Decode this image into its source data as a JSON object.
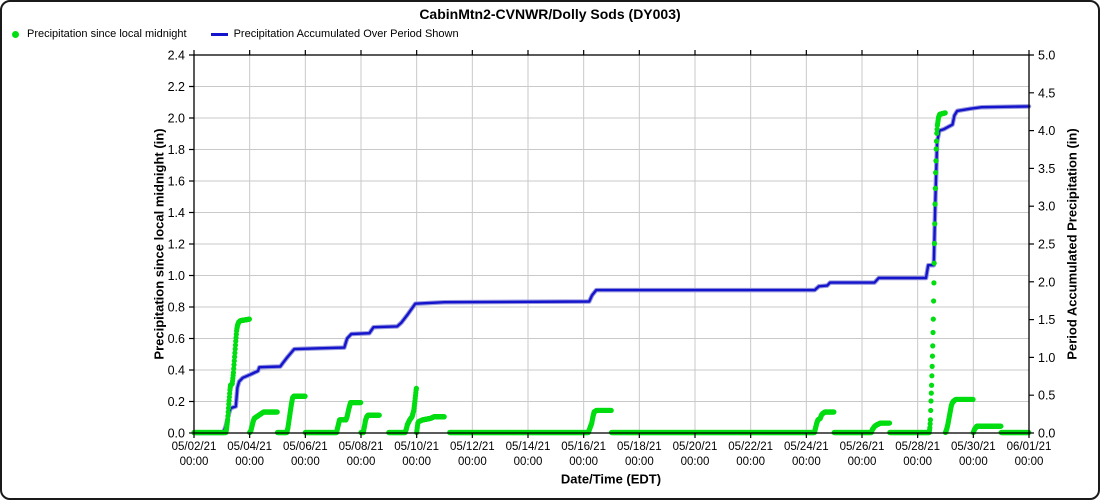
{
  "title": "CabinMtn2-CVNWR/Dolly Sods (DY003)",
  "legend": [
    {
      "label": "Precipitation since local midnight",
      "marker": "dot",
      "color": "#00dd11"
    },
    {
      "label": "Precipitation Accumulated Over Period Shown",
      "marker": "line",
      "color": "#1414cc"
    }
  ],
  "colors": {
    "grid": "#c9c9c9",
    "axis": "#000000",
    "green": "#00dd11",
    "blue": "#1414cc",
    "blue_halo": "#9898dd",
    "background": "#ffffff"
  },
  "chart_data": {
    "type": "line+scatter",
    "x_axis": {
      "title": "Date/Time (EDT)",
      "tick_dates": [
        "05/02/21",
        "05/04/21",
        "05/06/21",
        "05/08/21",
        "05/10/21",
        "05/12/21",
        "05/14/21",
        "05/16/21",
        "05/18/21",
        "05/20/21",
        "05/22/21",
        "05/24/21",
        "05/26/21",
        "05/28/21",
        "05/30/21",
        "06/01/21"
      ],
      "tick_time": "00:00",
      "range_days": [
        0,
        30
      ],
      "tick_interval_days": 2,
      "grid": true
    },
    "left_axis": {
      "title": "Precipitation since local midnight (in)",
      "min": 0.0,
      "max": 2.4,
      "step": 0.2,
      "ticks": [
        "0.0",
        "0.2",
        "0.4",
        "0.6",
        "0.8",
        "1.0",
        "1.2",
        "1.4",
        "1.6",
        "1.8",
        "2.0",
        "2.2",
        "2.4"
      ],
      "grid": true
    },
    "right_axis": {
      "title": "Period Accumulated Precipitation (in)",
      "min": 0.0,
      "max": 5.0,
      "step": 0.5,
      "ticks": [
        "0.0",
        "0.5",
        "1.0",
        "1.5",
        "2.0",
        "2.5",
        "3.0",
        "3.5",
        "4.0",
        "4.5",
        "5.0"
      ],
      "grid": false
    },
    "series": [
      {
        "name": "Precipitation since local midnight",
        "axis": "left",
        "type": "scatter",
        "color": "#00dd11",
        "sample_minutes": 15,
        "days": [
          {
            "date": "05/02",
            "profile": [
              [
                0,
                0
              ],
              [
                24,
                0
              ]
            ]
          },
          {
            "date": "05/03",
            "profile": [
              [
                0,
                0
              ],
              [
                3.5,
                0
              ],
              [
                4,
                0.02
              ],
              [
                5,
                0.08
              ],
              [
                6,
                0.18
              ],
              [
                7,
                0.27
              ],
              [
                7.5,
                0.3
              ],
              [
                9,
                0.31
              ],
              [
                10,
                0.38
              ],
              [
                11,
                0.48
              ],
              [
                12,
                0.58
              ],
              [
                12.8,
                0.65
              ],
              [
                13.5,
                0.68
              ],
              [
                14.5,
                0.7
              ],
              [
                16,
                0.71
              ],
              [
                24,
                0.72
              ]
            ]
          },
          {
            "date": "05/04",
            "profile": [
              [
                0,
                0
              ],
              [
                1,
                0.01
              ],
              [
                2,
                0.04
              ],
              [
                3,
                0.07
              ],
              [
                4,
                0.09
              ],
              [
                6,
                0.1
              ],
              [
                10,
                0.12
              ],
              [
                12,
                0.13
              ],
              [
                24,
                0.13
              ]
            ]
          },
          {
            "date": "05/05",
            "profile": [
              [
                0,
                0
              ],
              [
                8,
                0
              ],
              [
                9,
                0.03
              ],
              [
                10,
                0.08
              ],
              [
                11,
                0.13
              ],
              [
                12,
                0.18
              ],
              [
                13,
                0.22
              ],
              [
                14,
                0.23
              ],
              [
                24,
                0.23
              ]
            ]
          },
          {
            "date": "05/06",
            "profile": [
              [
                0,
                0
              ],
              [
                24,
                0
              ]
            ]
          },
          {
            "date": "05/07",
            "profile": [
              [
                0,
                0
              ],
              [
                3,
                0
              ],
              [
                3.5,
                0.02
              ],
              [
                4.5,
                0.05
              ],
              [
                5.5,
                0.08
              ],
              [
                11,
                0.08
              ],
              [
                12,
                0.1
              ],
              [
                13.5,
                0.15
              ],
              [
                15,
                0.19
              ],
              [
                24,
                0.19
              ]
            ]
          },
          {
            "date": "05/08",
            "profile": [
              [
                0,
                0
              ],
              [
                2,
                0
              ],
              [
                3,
                0.04
              ],
              [
                4,
                0.08
              ],
              [
                5,
                0.1
              ],
              [
                6,
                0.11
              ],
              [
                16,
                0.11
              ]
            ],
            "gaps": [
              [
                16,
                24
              ]
            ]
          },
          {
            "date": "05/09",
            "profile": [
              [
                0,
                0
              ],
              [
                14,
                0
              ],
              [
                15,
                0.02
              ],
              [
                16,
                0.05
              ],
              [
                18,
                0.08
              ],
              [
                20,
                0.1
              ],
              [
                21.5,
                0.14
              ],
              [
                22.5,
                0.2
              ],
              [
                23.5,
                0.27
              ],
              [
                24,
                0.29
              ]
            ]
          },
          {
            "date": "05/10",
            "profile": [
              [
                0,
                0
              ],
              [
                0.5,
                0.03
              ],
              [
                1,
                0.06
              ],
              [
                2,
                0.07
              ],
              [
                5,
                0.08
              ],
              [
                12,
                0.09
              ],
              [
                15,
                0.1
              ],
              [
                24,
                0.1
              ]
            ]
          },
          {
            "date": "05/11",
            "profile": [
              [
                4.5,
                0
              ],
              [
                24,
                0
              ]
            ],
            "gaps": [
              [
                0,
                4.5
              ]
            ]
          },
          {
            "date": "05/12",
            "profile": [
              [
                0,
                0
              ],
              [
                24,
                0
              ]
            ]
          },
          {
            "date": "05/13",
            "profile": [
              [
                0,
                0
              ],
              [
                24,
                0
              ]
            ]
          },
          {
            "date": "05/14",
            "profile": [
              [
                0,
                0
              ],
              [
                24,
                0
              ]
            ]
          },
          {
            "date": "05/15",
            "profile": [
              [
                0,
                0
              ],
              [
                24,
                0
              ]
            ]
          },
          {
            "date": "05/16",
            "profile": [
              [
                0,
                0
              ],
              [
                4,
                0
              ],
              [
                5,
                0.02
              ],
              [
                7,
                0.06
              ],
              [
                8,
                0.1
              ],
              [
                9,
                0.13
              ],
              [
                11,
                0.14
              ],
              [
                24,
                0.14
              ]
            ]
          },
          {
            "date": "05/17",
            "profile": [
              [
                0,
                0
              ],
              [
                24,
                0
              ]
            ]
          },
          {
            "date": "05/18",
            "profile": [
              [
                0,
                0
              ],
              [
                24,
                0
              ]
            ]
          },
          {
            "date": "05/19",
            "profile": [
              [
                0,
                0
              ],
              [
                24,
                0
              ]
            ]
          },
          {
            "date": "05/20",
            "profile": [
              [
                0,
                0
              ],
              [
                24,
                0
              ]
            ]
          },
          {
            "date": "05/21",
            "profile": [
              [
                0,
                0
              ],
              [
                24,
                0
              ]
            ]
          },
          {
            "date": "05/22",
            "profile": [
              [
                0,
                0
              ],
              [
                24,
                0
              ]
            ]
          },
          {
            "date": "05/23",
            "profile": [
              [
                0,
                0
              ],
              [
                24,
                0
              ]
            ]
          },
          {
            "date": "05/24",
            "profile": [
              [
                0,
                0
              ],
              [
                7,
                0
              ],
              [
                8,
                0.03
              ],
              [
                9,
                0.06
              ],
              [
                10,
                0.08
              ],
              [
                12,
                0.09
              ],
              [
                13,
                0.11
              ],
              [
                14,
                0.12
              ],
              [
                16,
                0.13
              ],
              [
                24,
                0.13
              ]
            ]
          },
          {
            "date": "05/25",
            "profile": [
              [
                0,
                0
              ],
              [
                24,
                0
              ]
            ]
          },
          {
            "date": "05/26",
            "profile": [
              [
                0,
                0
              ],
              [
                8,
                0
              ],
              [
                9,
                0.02
              ],
              [
                11,
                0.04
              ],
              [
                13,
                0.05
              ],
              [
                16,
                0.06
              ],
              [
                24,
                0.06
              ]
            ]
          },
          {
            "date": "05/27",
            "profile": [
              [
                0,
                0
              ],
              [
                24,
                0
              ]
            ]
          },
          {
            "date": "05/28",
            "profile": [
              [
                0,
                0
              ],
              [
                10,
                0
              ],
              [
                10.5,
                0.03
              ],
              [
                11,
                0.08
              ],
              [
                11.5,
                0.2
              ],
              [
                12,
                0.3
              ],
              [
                12.5,
                0.42
              ],
              [
                13,
                0.55
              ],
              [
                13.5,
                0.72
              ],
              [
                14,
                0.95
              ],
              [
                14.5,
                1.2
              ],
              [
                15,
                1.45
              ],
              [
                15.5,
                1.65
              ],
              [
                16,
                1.8
              ],
              [
                16.5,
                1.9
              ],
              [
                17,
                1.95
              ],
              [
                18,
                2.0
              ],
              [
                19,
                2.02
              ],
              [
                24,
                2.03
              ]
            ]
          },
          {
            "date": "05/29",
            "profile": [
              [
                0,
                0
              ],
              [
                1,
                0.02
              ],
              [
                2,
                0.05
              ],
              [
                3,
                0.09
              ],
              [
                4,
                0.13
              ],
              [
                5,
                0.17
              ],
              [
                6,
                0.19
              ],
              [
                7,
                0.2
              ],
              [
                9,
                0.21
              ],
              [
                24,
                0.21
              ]
            ]
          },
          {
            "date": "05/30",
            "profile": [
              [
                0,
                0
              ],
              [
                1,
                0.02
              ],
              [
                3,
                0.04
              ],
              [
                23,
                0.04
              ],
              [
                24,
                0.04
              ]
            ]
          },
          {
            "date": "05/31",
            "profile": [
              [
                0,
                0
              ],
              [
                24,
                0
              ]
            ]
          }
        ]
      },
      {
        "name": "Precipitation Accumulated Over Period Shown",
        "axis": "right",
        "type": "line",
        "color": "#1414cc",
        "points": [
          [
            0,
            0
          ],
          [
            1.05,
            0
          ],
          [
            1.15,
            0.1
          ],
          [
            1.25,
            0.25
          ],
          [
            1.32,
            0.33
          ],
          [
            1.5,
            0.35
          ],
          [
            1.56,
            0.6
          ],
          [
            1.62,
            0.68
          ],
          [
            1.75,
            0.73
          ],
          [
            2.0,
            0.77
          ],
          [
            2.3,
            0.82
          ],
          [
            2.35,
            0.87
          ],
          [
            3.1,
            0.88
          ],
          [
            3.2,
            0.93
          ],
          [
            3.35,
            1.0
          ],
          [
            3.6,
            1.11
          ],
          [
            4.5,
            1.12
          ],
          [
            5.4,
            1.13
          ],
          [
            5.5,
            1.25
          ],
          [
            5.65,
            1.31
          ],
          [
            6.3,
            1.32
          ],
          [
            6.45,
            1.4
          ],
          [
            7.3,
            1.41
          ],
          [
            7.45,
            1.46
          ],
          [
            7.7,
            1.58
          ],
          [
            7.95,
            1.71
          ],
          [
            9.0,
            1.73
          ],
          [
            14.2,
            1.74
          ],
          [
            14.3,
            1.82
          ],
          [
            14.45,
            1.89
          ],
          [
            22.3,
            1.89
          ],
          [
            22.45,
            1.94
          ],
          [
            22.75,
            1.95
          ],
          [
            22.85,
            1.99
          ],
          [
            24.45,
            1.99
          ],
          [
            24.6,
            2.05
          ],
          [
            26.3,
            2.05
          ],
          [
            26.38,
            2.22
          ],
          [
            26.58,
            2.22
          ],
          [
            26.63,
            3.0
          ],
          [
            26.7,
            3.85
          ],
          [
            26.78,
            4.0
          ],
          [
            26.95,
            4.02
          ],
          [
            27.1,
            4.05
          ],
          [
            27.25,
            4.08
          ],
          [
            27.32,
            4.2
          ],
          [
            27.42,
            4.26
          ],
          [
            27.9,
            4.29
          ],
          [
            28.3,
            4.31
          ],
          [
            30,
            4.32
          ]
        ]
      }
    ]
  }
}
